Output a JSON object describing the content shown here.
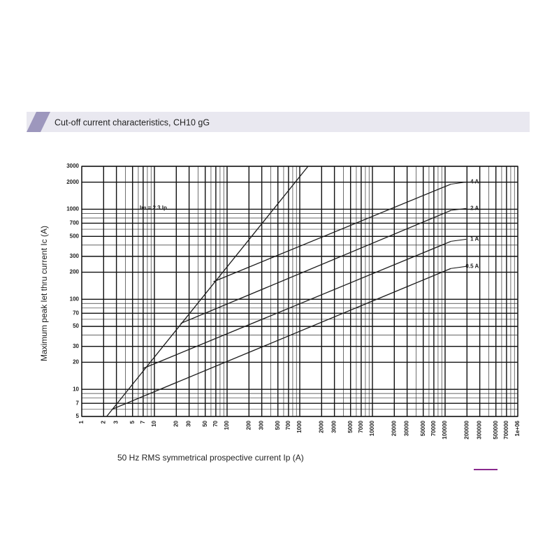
{
  "chart_data": {
    "type": "line",
    "title": "Cut-off current characteristics, CH10 gG",
    "x_label": "50 Hz RMS symmetrical prospective current Ip (A)",
    "y_label": "Maximum peak let thru current Ic (A)",
    "log_x": true,
    "log_y": true,
    "grid": true,
    "minor_grid": true,
    "xlim": [
      1,
      1000000
    ],
    "ylim": [
      5,
      3000
    ],
    "xticks": [
      1,
      2,
      3,
      5,
      7,
      10,
      20,
      30,
      50,
      70,
      100,
      200,
      300,
      500,
      700,
      1000,
      2000,
      3000,
      5000,
      7000,
      10000,
      20000,
      30000,
      50000,
      70000,
      100000,
      200000,
      300000,
      500000,
      700000,
      {
        "value": 1000000,
        "label": "1e+06"
      }
    ],
    "yticks": [
      5,
      7,
      10,
      20,
      30,
      50,
      70,
      100,
      200,
      300,
      500,
      700,
      1000,
      2000,
      3000
    ],
    "series": [
      {
        "name": "Im = 2.3 Ip",
        "color": "#1a1a1a",
        "x": [
          2.2,
          1300
        ],
        "values": [
          5,
          3000
        ]
      },
      {
        "name": "4 A",
        "color": "#1a1a1a",
        "x": [
          65,
          120000
        ],
        "values": [
          157,
          1900
        ]
      },
      {
        "name": "2 A",
        "color": "#1a1a1a",
        "x": [
          23,
          120000
        ],
        "values": [
          54,
          970
        ]
      },
      {
        "name": "1 A",
        "color": "#1a1a1a",
        "x": [
          6.9,
          120000
        ],
        "values": [
          17,
          440
        ]
      },
      {
        "name": "0.5 A",
        "color": "#1a1a1a",
        "x": [
          2.6,
          120000
        ],
        "values": [
          6,
          220
        ]
      }
    ]
  }
}
